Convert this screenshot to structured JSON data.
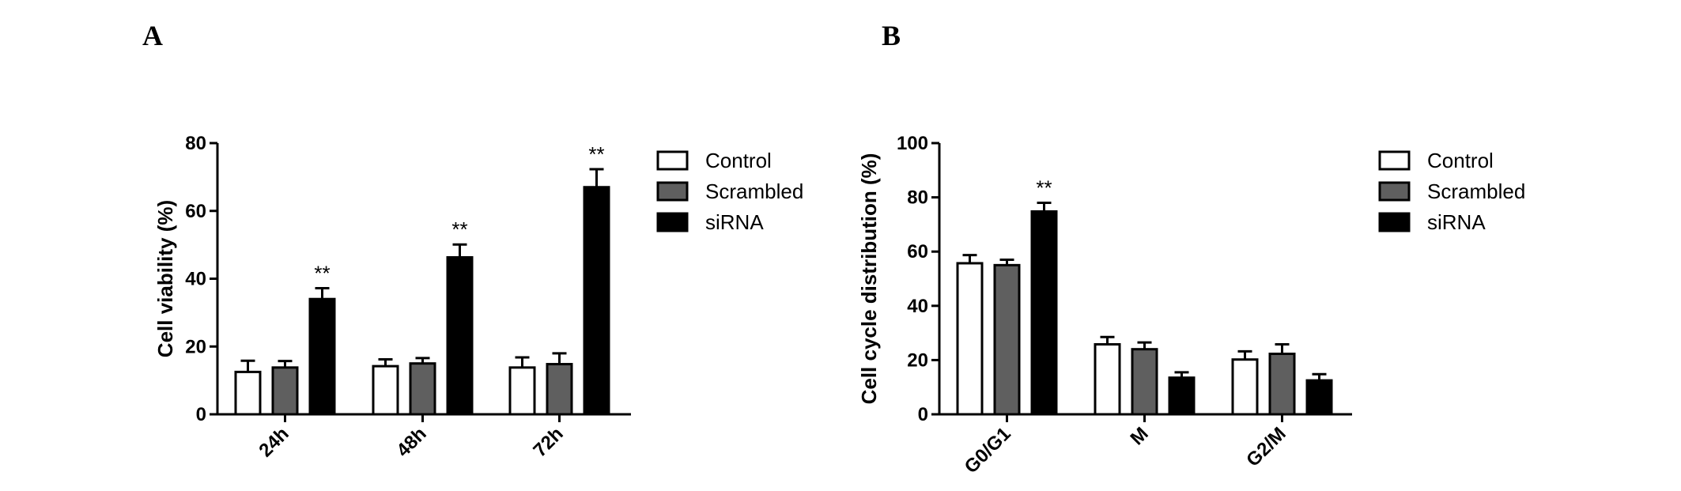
{
  "panels": [
    {
      "letter": "A",
      "chart_data": {
        "type": "bar",
        "categories": [
          "24h",
          "48h",
          "72h"
        ],
        "series": [
          {
            "name": "Control",
            "values": [
              12.5,
              14.2,
              13.8
            ],
            "errors": [
              3.3,
              2.0,
              3.0
            ],
            "color": "#ffffff"
          },
          {
            "name": "Scrambled",
            "values": [
              13.8,
              15.0,
              14.8
            ],
            "errors": [
              1.9,
              1.6,
              3.2
            ],
            "color": "#5f5f5f"
          },
          {
            "name": "siRNA",
            "values": [
              34.0,
              46.3,
              67.0
            ],
            "errors": [
              3.2,
              3.8,
              5.3
            ],
            "color": "#000000"
          }
        ],
        "significance": [
          {
            "category": "24h",
            "series": "siRNA",
            "label": "**"
          },
          {
            "category": "48h",
            "series": "siRNA",
            "label": "**"
          },
          {
            "category": "72h",
            "series": "siRNA",
            "label": "**"
          }
        ],
        "title": "",
        "xlabel": "",
        "ylabel": "Cell viability (%)",
        "ylim": [
          0,
          80
        ],
        "yticks": [
          0,
          20,
          40,
          60,
          80
        ],
        "grid": false,
        "legend": "right"
      }
    },
    {
      "letter": "B",
      "chart_data": {
        "type": "bar",
        "categories": [
          "G0/G1",
          "M",
          "G2/M"
        ],
        "series": [
          {
            "name": "Control",
            "values": [
              55.7,
              25.8,
              20.2
            ],
            "errors": [
              3.0,
              2.7,
              3.0
            ],
            "color": "#ffffff"
          },
          {
            "name": "Scrambled",
            "values": [
              55.0,
              24.0,
              22.3
            ],
            "errors": [
              2.0,
              2.5,
              3.5
            ],
            "color": "#5f5f5f"
          },
          {
            "name": "siRNA",
            "values": [
              74.8,
              13.5,
              12.5
            ],
            "errors": [
              3.2,
              2.0,
              2.3
            ],
            "color": "#000000"
          }
        ],
        "significance": [
          {
            "category": "G0/G1",
            "series": "siRNA",
            "label": "**"
          }
        ],
        "title": "",
        "xlabel": "",
        "ylabel": "Cell cycle distribution (%)",
        "ylim": [
          0,
          100
        ],
        "yticks": [
          0,
          20,
          40,
          60,
          80,
          100
        ],
        "grid": false,
        "legend": "right"
      }
    }
  ]
}
